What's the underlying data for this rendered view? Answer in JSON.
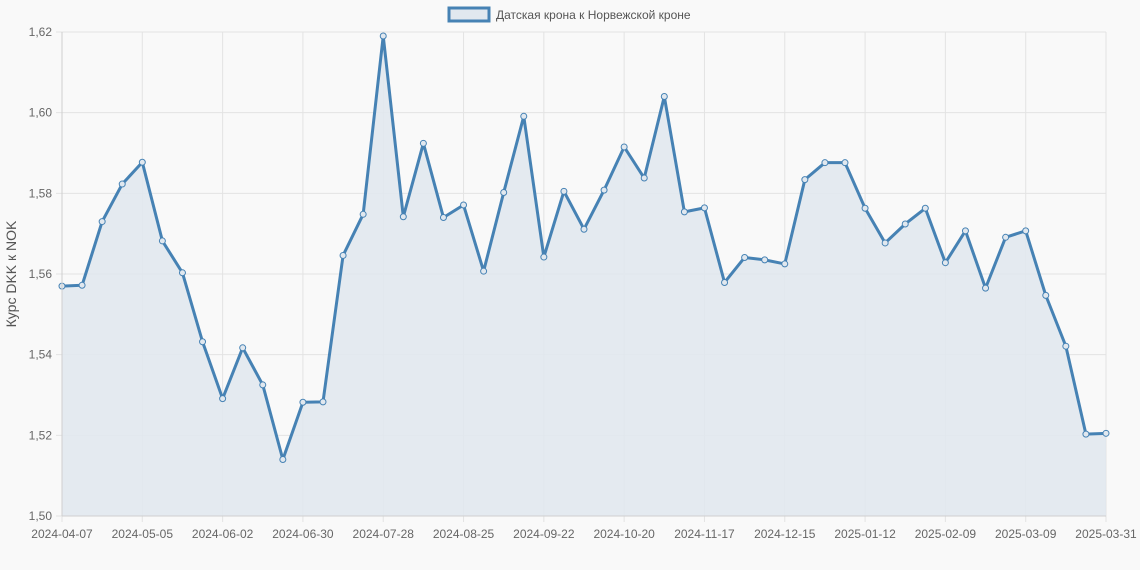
{
  "chart_data": {
    "type": "line",
    "legend_position": "top",
    "grid": true,
    "colors": {
      "line": "#4682b4",
      "fill": "#e1e8ef",
      "grid": "#e3e3e3",
      "background": "#f9f9f9"
    },
    "xlabel": "",
    "ylabel": "Курс DKK к NOK",
    "ylim": [
      1.5,
      1.62
    ],
    "y_ticks": [
      "1,50",
      "1,52",
      "1,54",
      "1,56",
      "1,58",
      "1,60",
      "1,62"
    ],
    "y_tick_values": [
      1.5,
      1.52,
      1.54,
      1.56,
      1.58,
      1.6,
      1.62
    ],
    "x_tick_labels": [
      "2024-04-07",
      "2024-05-05",
      "2024-06-02",
      "2024-06-30",
      "2024-07-28",
      "2024-08-25",
      "2024-09-22",
      "2024-10-20",
      "2024-11-17",
      "2024-12-15",
      "2025-01-12",
      "2025-02-09",
      "2025-03-09",
      "2025-03-31"
    ],
    "x_tick_indices": [
      0,
      4,
      8,
      12,
      16,
      20,
      24,
      28,
      32,
      36,
      40,
      44,
      48,
      52
    ],
    "series": [
      {
        "name": "Датская крона к Норвежской кроне",
        "values": [
          1.557,
          1.5572,
          1.573,
          1.5823,
          1.5877,
          1.5682,
          1.5603,
          1.5432,
          1.5291,
          1.5417,
          1.5325,
          1.514,
          1.5282,
          1.5283,
          1.5646,
          1.5748,
          1.619,
          1.5742,
          1.5924,
          1.574,
          1.5771,
          1.5607,
          1.5802,
          1.5991,
          1.5642,
          1.5805,
          1.5711,
          1.5808,
          1.5915,
          1.5838,
          1.604,
          1.5754,
          1.5764,
          1.5579,
          1.5641,
          1.5635,
          1.5625,
          1.5834,
          1.5876,
          1.5876,
          1.5763,
          1.5677,
          1.5724,
          1.5763,
          1.5628,
          1.5707,
          1.5565,
          1.5691,
          1.5707,
          1.5547,
          1.5421,
          1.5203,
          1.5205
        ]
      }
    ]
  }
}
